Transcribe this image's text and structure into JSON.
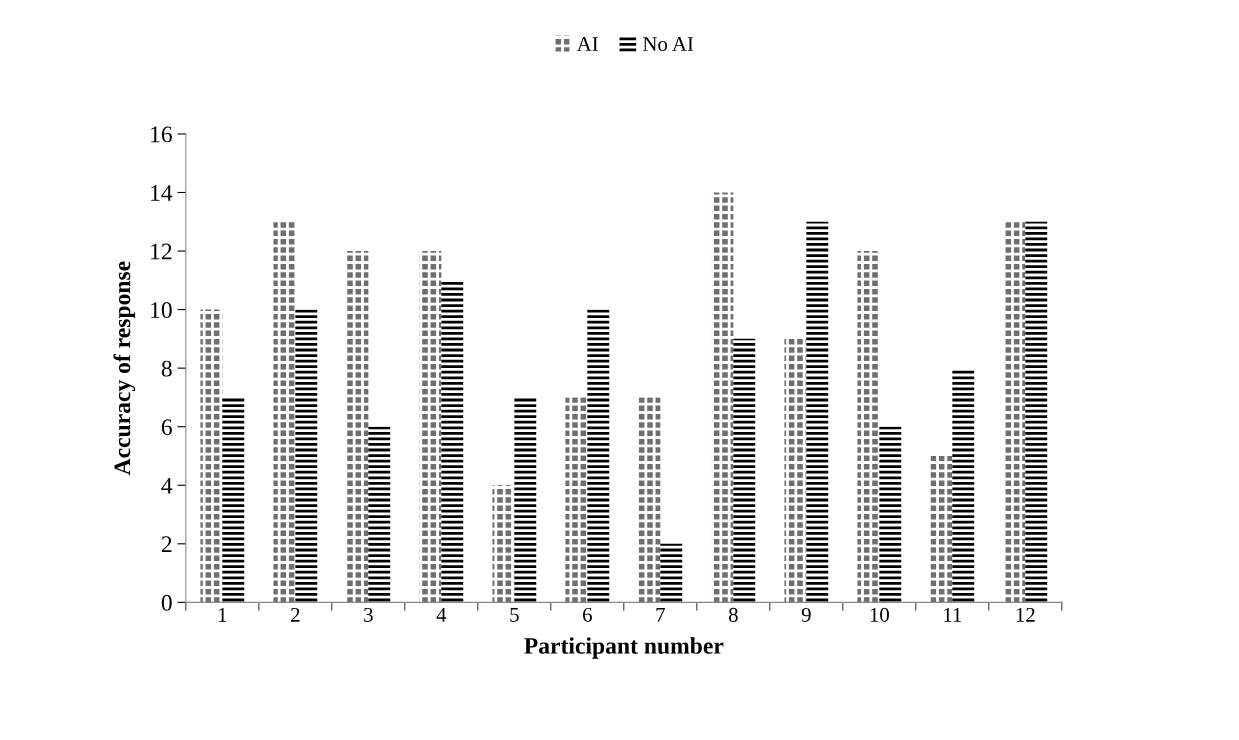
{
  "chart_data": {
    "type": "bar",
    "xlabel": "Participant number",
    "ylabel": "Accuracy of response",
    "categories": [
      "1",
      "2",
      "3",
      "4",
      "5",
      "6",
      "7",
      "8",
      "9",
      "10",
      "11",
      "12"
    ],
    "series": [
      {
        "name": "AI",
        "color": "#6e6e6e",
        "values": [
          10,
          13,
          12,
          12,
          4,
          7,
          7,
          14,
          9,
          12,
          5,
          13
        ]
      },
      {
        "name": "No AI",
        "color": "#000000",
        "values": [
          7,
          10,
          6,
          11,
          7,
          10,
          2,
          9,
          13,
          6,
          8,
          13
        ]
      }
    ],
    "ylim": [
      0,
      16
    ],
    "yticks": [
      0,
      2,
      4,
      6,
      8,
      10,
      12,
      14,
      16
    ],
    "grid": false,
    "legend": "top"
  }
}
